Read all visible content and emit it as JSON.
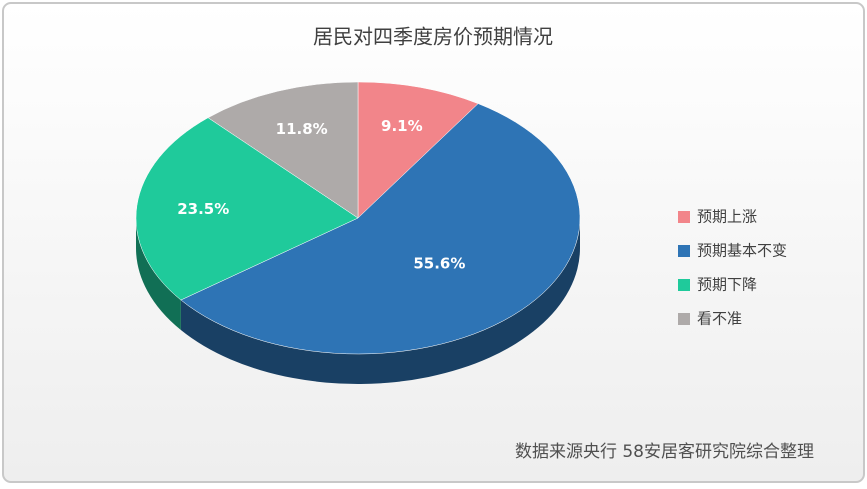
{
  "chart_data": {
    "type": "pie",
    "title": "居民对四季度房价预期情况",
    "categories": [
      "预期上涨",
      "预期基本不变",
      "预期下降",
      "看不准"
    ],
    "values": [
      9.1,
      55.6,
      23.5,
      11.8
    ],
    "value_labels": [
      "9.1%",
      "55.6%",
      "23.5%",
      "11.8%"
    ],
    "colors": [
      "#f2858a",
      "#2e74b5",
      "#1fca9b",
      "#aeaaa9"
    ],
    "legend": "right",
    "source": "数据来源央行 58安居客研究院综合整理"
  }
}
